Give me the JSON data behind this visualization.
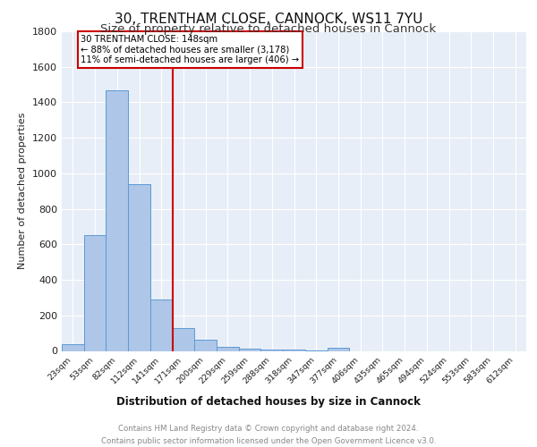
{
  "title": "30, TRENTHAM CLOSE, CANNOCK, WS11 7YU",
  "subtitle": "Size of property relative to detached houses in Cannock",
  "xlabel": "Distribution of detached houses by size in Cannock",
  "ylabel": "Number of detached properties",
  "categories": [
    "23sqm",
    "53sqm",
    "82sqm",
    "112sqm",
    "141sqm",
    "171sqm",
    "200sqm",
    "229sqm",
    "259sqm",
    "288sqm",
    "318sqm",
    "347sqm",
    "377sqm",
    "406sqm",
    "435sqm",
    "465sqm",
    "494sqm",
    "524sqm",
    "553sqm",
    "583sqm",
    "612sqm"
  ],
  "values": [
    40,
    650,
    1470,
    940,
    290,
    130,
    65,
    22,
    14,
    10,
    8,
    5,
    20,
    0,
    0,
    0,
    0,
    0,
    0,
    0,
    0
  ],
  "bar_color": "#aec6e8",
  "bar_edge_color": "#5b9bd5",
  "vline_index": 4,
  "vline_color": "#cc0000",
  "annotation_text": "30 TRENTHAM CLOSE: 148sqm\n← 88% of detached houses are smaller (3,178)\n11% of semi-detached houses are larger (406) →",
  "annotation_box_color": "#ffffff",
  "annotation_box_edge": "#cc0000",
  "ylim": [
    0,
    1800
  ],
  "yticks": [
    0,
    200,
    400,
    600,
    800,
    1000,
    1200,
    1400,
    1600,
    1800
  ],
  "background_color": "#e8eef7",
  "grid_color": "#ffffff",
  "title_fontsize": 11,
  "subtitle_fontsize": 9.5,
  "footer_text": "Contains HM Land Registry data © Crown copyright and database right 2024.\nContains public sector information licensed under the Open Government Licence v3.0.",
  "footer_color": "#888888"
}
